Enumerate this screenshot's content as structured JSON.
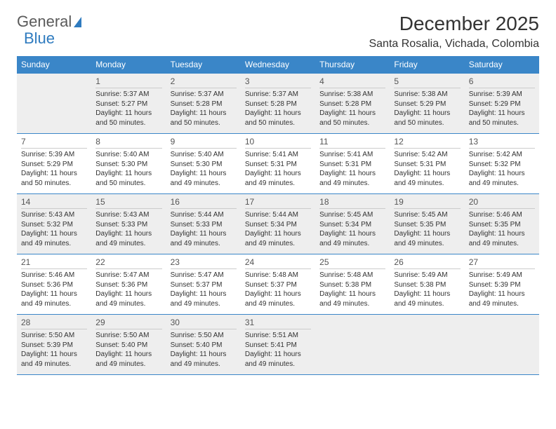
{
  "logo": {
    "textGray": "General",
    "textBlue": "Blue"
  },
  "title": "December 2025",
  "location": "Santa Rosalia, Vichada, Colombia",
  "colors": {
    "headerBar": "#3a86c8",
    "headerText": "#ffffff",
    "rowBorder": "#3a86c8",
    "shadedBg": "#eeeeee",
    "bodyText": "#333333"
  },
  "weekdays": [
    "Sunday",
    "Monday",
    "Tuesday",
    "Wednesday",
    "Thursday",
    "Friday",
    "Saturday"
  ],
  "weeks": [
    {
      "shaded": true,
      "days": [
        {
          "num": "",
          "sunrise": "",
          "sunset": "",
          "daylight": ""
        },
        {
          "num": "1",
          "sunrise": "Sunrise: 5:37 AM",
          "sunset": "Sunset: 5:27 PM",
          "daylight": "Daylight: 11 hours and 50 minutes."
        },
        {
          "num": "2",
          "sunrise": "Sunrise: 5:37 AM",
          "sunset": "Sunset: 5:28 PM",
          "daylight": "Daylight: 11 hours and 50 minutes."
        },
        {
          "num": "3",
          "sunrise": "Sunrise: 5:37 AM",
          "sunset": "Sunset: 5:28 PM",
          "daylight": "Daylight: 11 hours and 50 minutes."
        },
        {
          "num": "4",
          "sunrise": "Sunrise: 5:38 AM",
          "sunset": "Sunset: 5:28 PM",
          "daylight": "Daylight: 11 hours and 50 minutes."
        },
        {
          "num": "5",
          "sunrise": "Sunrise: 5:38 AM",
          "sunset": "Sunset: 5:29 PM",
          "daylight": "Daylight: 11 hours and 50 minutes."
        },
        {
          "num": "6",
          "sunrise": "Sunrise: 5:39 AM",
          "sunset": "Sunset: 5:29 PM",
          "daylight": "Daylight: 11 hours and 50 minutes."
        }
      ]
    },
    {
      "shaded": false,
      "days": [
        {
          "num": "7",
          "sunrise": "Sunrise: 5:39 AM",
          "sunset": "Sunset: 5:29 PM",
          "daylight": "Daylight: 11 hours and 50 minutes."
        },
        {
          "num": "8",
          "sunrise": "Sunrise: 5:40 AM",
          "sunset": "Sunset: 5:30 PM",
          "daylight": "Daylight: 11 hours and 50 minutes."
        },
        {
          "num": "9",
          "sunrise": "Sunrise: 5:40 AM",
          "sunset": "Sunset: 5:30 PM",
          "daylight": "Daylight: 11 hours and 49 minutes."
        },
        {
          "num": "10",
          "sunrise": "Sunrise: 5:41 AM",
          "sunset": "Sunset: 5:31 PM",
          "daylight": "Daylight: 11 hours and 49 minutes."
        },
        {
          "num": "11",
          "sunrise": "Sunrise: 5:41 AM",
          "sunset": "Sunset: 5:31 PM",
          "daylight": "Daylight: 11 hours and 49 minutes."
        },
        {
          "num": "12",
          "sunrise": "Sunrise: 5:42 AM",
          "sunset": "Sunset: 5:31 PM",
          "daylight": "Daylight: 11 hours and 49 minutes."
        },
        {
          "num": "13",
          "sunrise": "Sunrise: 5:42 AM",
          "sunset": "Sunset: 5:32 PM",
          "daylight": "Daylight: 11 hours and 49 minutes."
        }
      ]
    },
    {
      "shaded": true,
      "days": [
        {
          "num": "14",
          "sunrise": "Sunrise: 5:43 AM",
          "sunset": "Sunset: 5:32 PM",
          "daylight": "Daylight: 11 hours and 49 minutes."
        },
        {
          "num": "15",
          "sunrise": "Sunrise: 5:43 AM",
          "sunset": "Sunset: 5:33 PM",
          "daylight": "Daylight: 11 hours and 49 minutes."
        },
        {
          "num": "16",
          "sunrise": "Sunrise: 5:44 AM",
          "sunset": "Sunset: 5:33 PM",
          "daylight": "Daylight: 11 hours and 49 minutes."
        },
        {
          "num": "17",
          "sunrise": "Sunrise: 5:44 AM",
          "sunset": "Sunset: 5:34 PM",
          "daylight": "Daylight: 11 hours and 49 minutes."
        },
        {
          "num": "18",
          "sunrise": "Sunrise: 5:45 AM",
          "sunset": "Sunset: 5:34 PM",
          "daylight": "Daylight: 11 hours and 49 minutes."
        },
        {
          "num": "19",
          "sunrise": "Sunrise: 5:45 AM",
          "sunset": "Sunset: 5:35 PM",
          "daylight": "Daylight: 11 hours and 49 minutes."
        },
        {
          "num": "20",
          "sunrise": "Sunrise: 5:46 AM",
          "sunset": "Sunset: 5:35 PM",
          "daylight": "Daylight: 11 hours and 49 minutes."
        }
      ]
    },
    {
      "shaded": false,
      "days": [
        {
          "num": "21",
          "sunrise": "Sunrise: 5:46 AM",
          "sunset": "Sunset: 5:36 PM",
          "daylight": "Daylight: 11 hours and 49 minutes."
        },
        {
          "num": "22",
          "sunrise": "Sunrise: 5:47 AM",
          "sunset": "Sunset: 5:36 PM",
          "daylight": "Daylight: 11 hours and 49 minutes."
        },
        {
          "num": "23",
          "sunrise": "Sunrise: 5:47 AM",
          "sunset": "Sunset: 5:37 PM",
          "daylight": "Daylight: 11 hours and 49 minutes."
        },
        {
          "num": "24",
          "sunrise": "Sunrise: 5:48 AM",
          "sunset": "Sunset: 5:37 PM",
          "daylight": "Daylight: 11 hours and 49 minutes."
        },
        {
          "num": "25",
          "sunrise": "Sunrise: 5:48 AM",
          "sunset": "Sunset: 5:38 PM",
          "daylight": "Daylight: 11 hours and 49 minutes."
        },
        {
          "num": "26",
          "sunrise": "Sunrise: 5:49 AM",
          "sunset": "Sunset: 5:38 PM",
          "daylight": "Daylight: 11 hours and 49 minutes."
        },
        {
          "num": "27",
          "sunrise": "Sunrise: 5:49 AM",
          "sunset": "Sunset: 5:39 PM",
          "daylight": "Daylight: 11 hours and 49 minutes."
        }
      ]
    },
    {
      "shaded": true,
      "days": [
        {
          "num": "28",
          "sunrise": "Sunrise: 5:50 AM",
          "sunset": "Sunset: 5:39 PM",
          "daylight": "Daylight: 11 hours and 49 minutes."
        },
        {
          "num": "29",
          "sunrise": "Sunrise: 5:50 AM",
          "sunset": "Sunset: 5:40 PM",
          "daylight": "Daylight: 11 hours and 49 minutes."
        },
        {
          "num": "30",
          "sunrise": "Sunrise: 5:50 AM",
          "sunset": "Sunset: 5:40 PM",
          "daylight": "Daylight: 11 hours and 49 minutes."
        },
        {
          "num": "31",
          "sunrise": "Sunrise: 5:51 AM",
          "sunset": "Sunset: 5:41 PM",
          "daylight": "Daylight: 11 hours and 49 minutes."
        },
        {
          "num": "",
          "sunrise": "",
          "sunset": "",
          "daylight": ""
        },
        {
          "num": "",
          "sunrise": "",
          "sunset": "",
          "daylight": ""
        },
        {
          "num": "",
          "sunrise": "",
          "sunset": "",
          "daylight": ""
        }
      ]
    }
  ]
}
